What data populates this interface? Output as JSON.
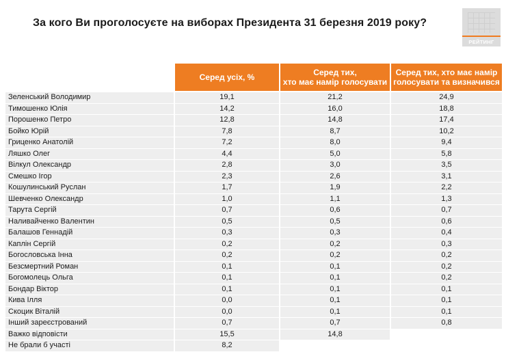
{
  "title": "За кого Ви проголосуєте на виборах Президента 31 березня 2019 року?",
  "logo": {
    "text": "РЕЙТИНГ",
    "accent": "#ee7d22"
  },
  "headers": [
    "Серед усіх, %",
    "Серед тих,\nхто має намір голосувати",
    "Серед тих, хто має намір\nголосувати та визначився"
  ],
  "rows": [
    {
      "name": "Зеленський Володимир",
      "all": "19,1",
      "voters": "21,2",
      "decided": "24,9"
    },
    {
      "name": "Тимошенко Юлія",
      "all": "14,2",
      "voters": "16,0",
      "decided": "18,8"
    },
    {
      "name": "Порошенко Петро",
      "all": "12,8",
      "voters": "14,8",
      "decided": "17,4"
    },
    {
      "name": "Бойко Юрій",
      "all": "7,8",
      "voters": "8,7",
      "decided": "10,2"
    },
    {
      "name": "Гриценко Анатолій",
      "all": "7,2",
      "voters": "8,0",
      "decided": "9,4"
    },
    {
      "name": "Ляшко Олег",
      "all": "4,4",
      "voters": "5,0",
      "decided": "5,8"
    },
    {
      "name": "Вілкул Олександр",
      "all": "2,8",
      "voters": "3,0",
      "decided": "3,5"
    },
    {
      "name": "Смешко Ігор",
      "all": "2,3",
      "voters": "2,6",
      "decided": "3,1"
    },
    {
      "name": "Кошулинський Руслан",
      "all": "1,7",
      "voters": "1,9",
      "decided": "2,2"
    },
    {
      "name": "Шевченко Олександр",
      "all": "1,0",
      "voters": "1,1",
      "decided": "1,3"
    },
    {
      "name": "Тарута Сергій",
      "all": "0,7",
      "voters": "0,6",
      "decided": "0,7"
    },
    {
      "name": "Наливайченко Валентин",
      "all": "0,5",
      "voters": "0,5",
      "decided": "0,6"
    },
    {
      "name": "Балашов Геннадій",
      "all": "0,3",
      "voters": "0,3",
      "decided": "0,4"
    },
    {
      "name": "Каплін Сергій",
      "all": "0,2",
      "voters": "0,2",
      "decided": "0,3"
    },
    {
      "name": "Богословська Інна",
      "all": "0,2",
      "voters": "0,2",
      "decided": "0,2"
    },
    {
      "name": "Безсмертний Роман",
      "all": "0,1",
      "voters": "0,1",
      "decided": "0,2"
    },
    {
      "name": "Богомолець Ольга",
      "all": "0,1",
      "voters": "0,1",
      "decided": "0,2"
    },
    {
      "name": "Бондар Віктор",
      "all": "0,1",
      "voters": "0,1",
      "decided": "0,1"
    },
    {
      "name": "Кива Ілля",
      "all": "0,0",
      "voters": "0,1",
      "decided": "0,1"
    },
    {
      "name": "Скоцик Віталій",
      "all": "0,0",
      "voters": "0,1",
      "decided": "0,1"
    },
    {
      "name": "Інший зареєстрований",
      "all": "0,7",
      "voters": "0,7",
      "decided": "0,8"
    },
    {
      "name": "Важко відповісти",
      "all": "15,5",
      "voters": "14,8",
      "decided": ""
    },
    {
      "name": "Не брали б участі",
      "all": "8,2",
      "voters": "",
      "decided": ""
    }
  ]
}
